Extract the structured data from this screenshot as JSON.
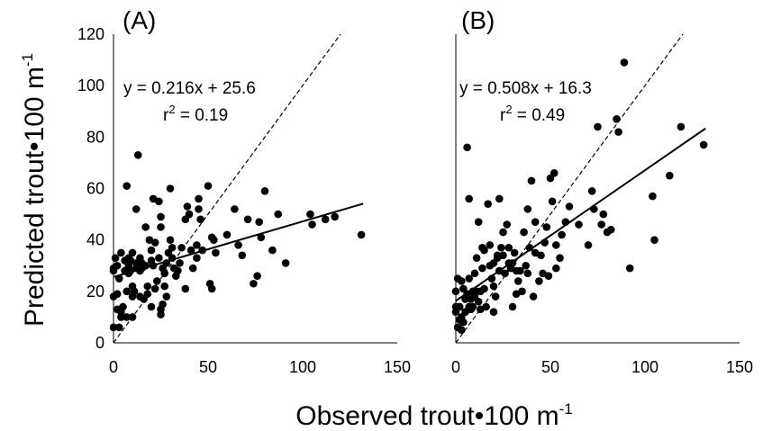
{
  "chart_data": [
    {
      "type": "scatter",
      "panel_label": "(A)",
      "xlim": [
        0,
        150
      ],
      "ylim": [
        0,
        120
      ],
      "xticks": [
        0,
        50,
        100,
        150
      ],
      "yticks": [
        0,
        20,
        40,
        60,
        80,
        100,
        120
      ],
      "equation": "y = 0.216x + 25.6",
      "r2_label": "r",
      "r2_value": " = 0.19",
      "fit": {
        "slope": 0.216,
        "intercept": 25.6,
        "x_range": [
          0,
          132
        ],
        "style": "solid"
      },
      "identity_line": {
        "x_range": [
          0,
          120
        ],
        "style": "dashed"
      },
      "points": [
        [
          0,
          6
        ],
        [
          0,
          18
        ],
        [
          0,
          28
        ],
        [
          0,
          29
        ],
        [
          1,
          33
        ],
        [
          2,
          13
        ],
        [
          2,
          19
        ],
        [
          2,
          30
        ],
        [
          3,
          6
        ],
        [
          3,
          25
        ],
        [
          4,
          10
        ],
        [
          4,
          12
        ],
        [
          4,
          35
        ],
        [
          5,
          14
        ],
        [
          6,
          28
        ],
        [
          6,
          32
        ],
        [
          7,
          10
        ],
        [
          7,
          20
        ],
        [
          7,
          61
        ],
        [
          8,
          27
        ],
        [
          8,
          30
        ],
        [
          8,
          33
        ],
        [
          9,
          28
        ],
        [
          9,
          32
        ],
        [
          10,
          10
        ],
        [
          10,
          18
        ],
        [
          10,
          22
        ],
        [
          10,
          35
        ],
        [
          11,
          20
        ],
        [
          12,
          29
        ],
        [
          12,
          31
        ],
        [
          12,
          52
        ],
        [
          13,
          73
        ],
        [
          14,
          18
        ],
        [
          14,
          28
        ],
        [
          14,
          33
        ],
        [
          15,
          29
        ],
        [
          15,
          31
        ],
        [
          16,
          17
        ],
        [
          16,
          30
        ],
        [
          17,
          45
        ],
        [
          17,
          30
        ],
        [
          18,
          19
        ],
        [
          18,
          22
        ],
        [
          19,
          40
        ],
        [
          20,
          14
        ],
        [
          20,
          32
        ],
        [
          20,
          36
        ],
        [
          21,
          56
        ],
        [
          21,
          30
        ],
        [
          22,
          39
        ],
        [
          22,
          21
        ],
        [
          23,
          24
        ],
        [
          24,
          33
        ],
        [
          24,
          55
        ],
        [
          25,
          11
        ],
        [
          25,
          13
        ],
        [
          25,
          45
        ],
        [
          25,
          49
        ],
        [
          26,
          29
        ],
        [
          26,
          15
        ],
        [
          27,
          27
        ],
        [
          27,
          22
        ],
        [
          28,
          31
        ],
        [
          28,
          18
        ],
        [
          29,
          35
        ],
        [
          30,
          60
        ],
        [
          30,
          40
        ],
        [
          31,
          37
        ],
        [
          31,
          33
        ],
        [
          32,
          29
        ],
        [
          33,
          26
        ],
        [
          34,
          28
        ],
        [
          35,
          31
        ],
        [
          36,
          37
        ],
        [
          38,
          48
        ],
        [
          38,
          21
        ],
        [
          39,
          53
        ],
        [
          40,
          50
        ],
        [
          41,
          36
        ],
        [
          42,
          29
        ],
        [
          44,
          33
        ],
        [
          44,
          38
        ],
        [
          45,
          52
        ],
        [
          45,
          56
        ],
        [
          46,
          48
        ],
        [
          47,
          36
        ],
        [
          50,
          61
        ],
        [
          51,
          23
        ],
        [
          52,
          21
        ],
        [
          52,
          41
        ],
        [
          53,
          40
        ],
        [
          54,
          35
        ],
        [
          60,
          42
        ],
        [
          64,
          52
        ],
        [
          66,
          38
        ],
        [
          68,
          34
        ],
        [
          71,
          48
        ],
        [
          74,
          23
        ],
        [
          76,
          26
        ],
        [
          77,
          47
        ],
        [
          78,
          41
        ],
        [
          80,
          59
        ],
        [
          84,
          36
        ],
        [
          87,
          50
        ],
        [
          91,
          31
        ],
        [
          104,
          50
        ],
        [
          105,
          46
        ],
        [
          112,
          48
        ],
        [
          117,
          49
        ],
        [
          131,
          42
        ]
      ]
    },
    {
      "type": "scatter",
      "panel_label": "(B)",
      "xlim": [
        0,
        150
      ],
      "ylim": [
        0,
        120
      ],
      "xticks": [
        0,
        50,
        100,
        150
      ],
      "yticks": [
        0,
        20,
        40,
        60,
        80,
        100,
        120
      ],
      "equation": "y = 0.508x + 16.3",
      "r2_label": "r",
      "r2_value": " = 0.49",
      "fit": {
        "slope": 0.508,
        "intercept": 16.3,
        "x_range": [
          0,
          132
        ],
        "style": "solid"
      },
      "identity_line": {
        "x_range": [
          0,
          120
        ],
        "style": "dashed"
      },
      "points": [
        [
          0,
          12
        ],
        [
          0,
          14
        ],
        [
          0,
          20
        ],
        [
          1,
          6
        ],
        [
          1,
          25
        ],
        [
          2,
          9
        ],
        [
          2,
          14
        ],
        [
          3,
          5
        ],
        [
          3,
          10
        ],
        [
          3,
          24
        ],
        [
          4,
          8
        ],
        [
          4,
          21
        ],
        [
          5,
          12
        ],
        [
          5,
          17
        ],
        [
          6,
          19
        ],
        [
          6,
          76
        ],
        [
          7,
          14
        ],
        [
          7,
          25
        ],
        [
          7,
          56
        ],
        [
          8,
          13
        ],
        [
          8,
          17
        ],
        [
          9,
          20
        ],
        [
          9,
          14
        ],
        [
          10,
          18
        ],
        [
          10,
          27
        ],
        [
          11,
          20
        ],
        [
          11,
          33
        ],
        [
          12,
          47
        ],
        [
          12,
          16
        ],
        [
          13,
          13
        ],
        [
          13,
          20
        ],
        [
          14,
          29
        ],
        [
          14,
          37
        ],
        [
          15,
          21
        ],
        [
          15,
          36
        ],
        [
          16,
          14
        ],
        [
          17,
          54
        ],
        [
          18,
          38
        ],
        [
          18,
          30
        ],
        [
          19,
          25
        ],
        [
          20,
          12
        ],
        [
          20,
          22
        ],
        [
          20,
          31
        ],
        [
          21,
          18
        ],
        [
          22,
          33
        ],
        [
          22,
          34
        ],
        [
          23,
          56
        ],
        [
          23,
          28
        ],
        [
          24,
          37
        ],
        [
          25,
          34
        ],
        [
          25,
          43
        ],
        [
          26,
          27
        ],
        [
          27,
          46
        ],
        [
          28,
          37
        ],
        [
          28,
          31
        ],
        [
          29,
          29
        ],
        [
          30,
          14
        ],
        [
          30,
          31
        ],
        [
          31,
          35
        ],
        [
          32,
          28
        ],
        [
          32,
          19
        ],
        [
          33,
          24
        ],
        [
          34,
          28
        ],
        [
          35,
          20
        ],
        [
          36,
          43
        ],
        [
          37,
          30
        ],
        [
          38,
          27
        ],
        [
          38,
          52
        ],
        [
          39,
          37
        ],
        [
          40,
          63
        ],
        [
          41,
          18
        ],
        [
          42,
          35
        ],
        [
          42,
          47
        ],
        [
          44,
          24
        ],
        [
          45,
          34
        ],
        [
          46,
          27
        ],
        [
          47,
          39
        ],
        [
          48,
          45
        ],
        [
          49,
          26
        ],
        [
          50,
          64
        ],
        [
          51,
          55
        ],
        [
          52,
          66
        ],
        [
          53,
          38
        ],
        [
          53,
          29
        ],
        [
          55,
          33
        ],
        [
          56,
          42
        ],
        [
          58,
          47
        ],
        [
          60,
          53
        ],
        [
          65,
          46
        ],
        [
          70,
          38
        ],
        [
          72,
          59
        ],
        [
          73,
          52
        ],
        [
          75,
          84
        ],
        [
          77,
          46
        ],
        [
          78,
          50
        ],
        [
          80,
          43
        ],
        [
          82,
          44
        ],
        [
          85,
          87
        ],
        [
          86,
          82
        ],
        [
          89,
          109
        ],
        [
          92,
          29
        ],
        [
          104,
          57
        ],
        [
          105,
          40
        ],
        [
          113,
          65
        ],
        [
          119,
          84
        ],
        [
          131,
          77
        ]
      ]
    }
  ],
  "shared_labels": {
    "ylabel": "Predicted trout•100 m",
    "ylabel_sup": "-1",
    "xlabel": "Observed trout•100 m",
    "xlabel_sup": "-1",
    "r2_sup": "2"
  }
}
